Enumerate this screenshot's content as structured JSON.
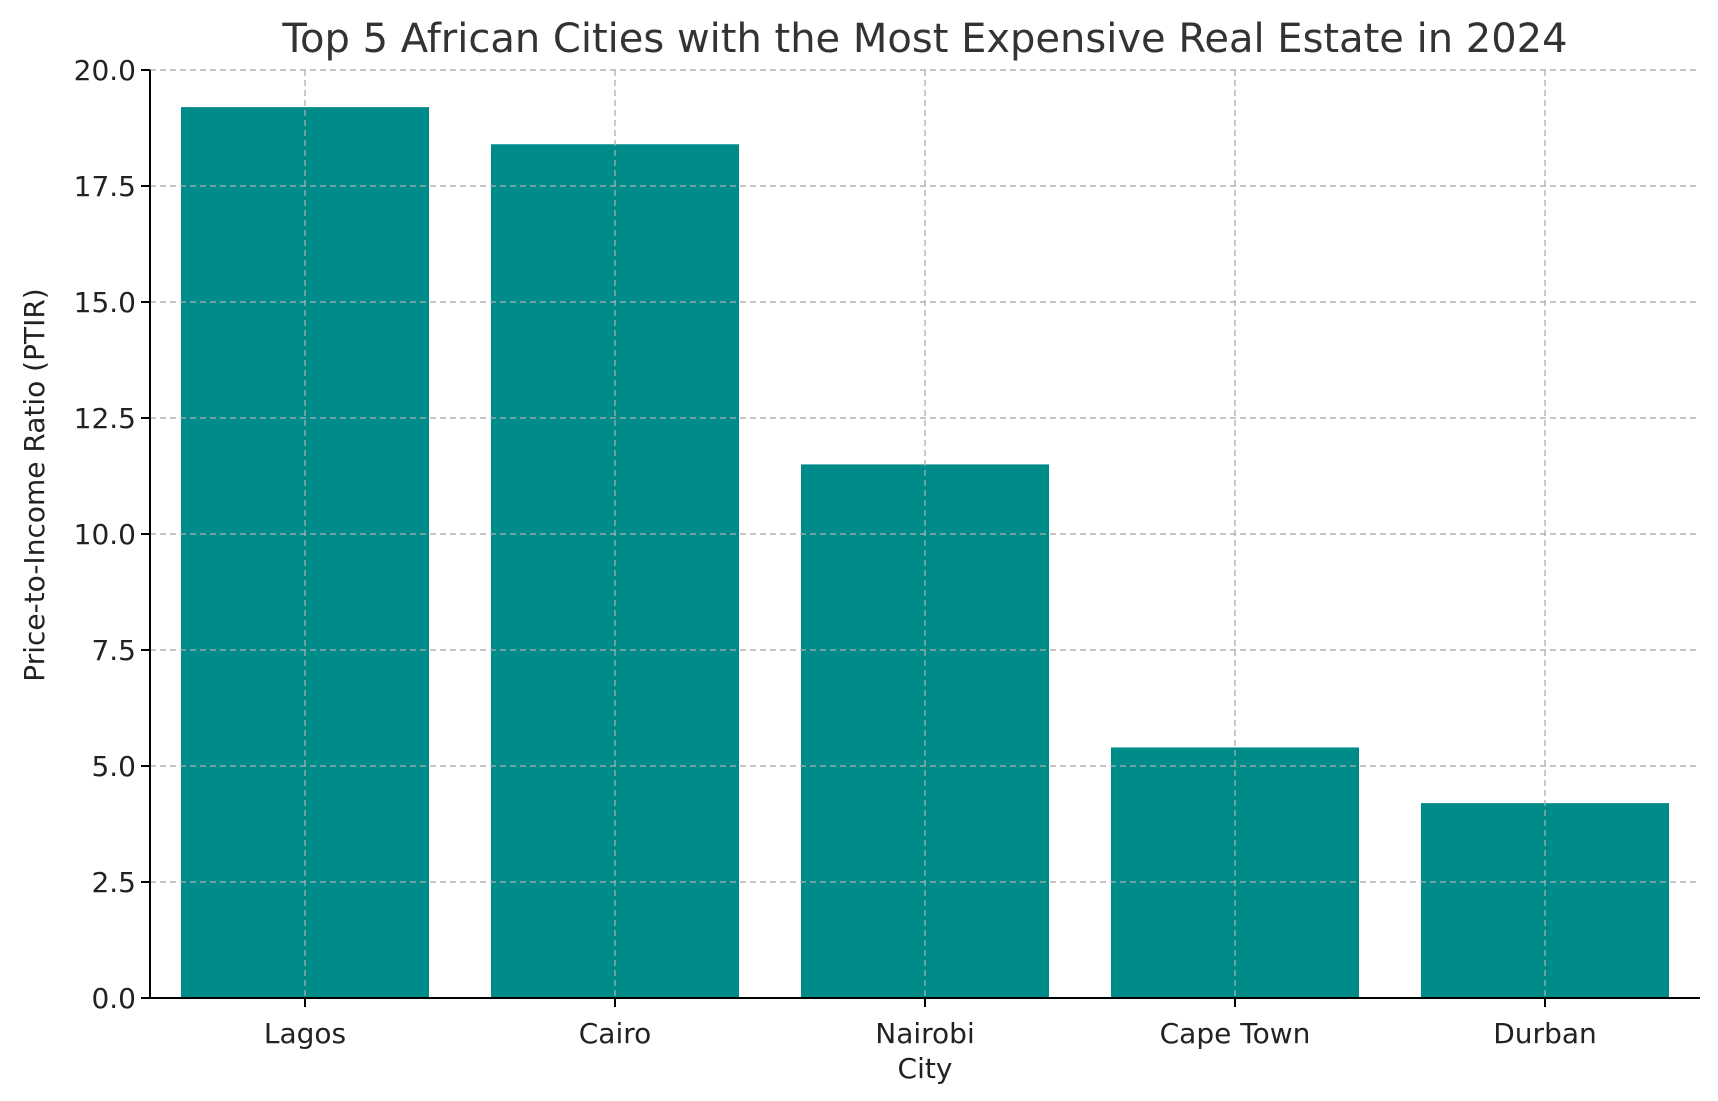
{
  "chart_data": {
    "type": "bar",
    "title": "Top 5 African Cities with the Most Expensive Real Estate in 2024",
    "xlabel": "City",
    "ylabel": "Price-to-Income Ratio (PTIR)",
    "categories": [
      "Lagos",
      "Cairo",
      "Nairobi",
      "Cape Town",
      "Durban"
    ],
    "values": [
      19.2,
      18.4,
      11.5,
      5.4,
      4.2
    ],
    "ylim": [
      0,
      20
    ],
    "yticks": [
      "0.0",
      "2.5",
      "5.0",
      "7.5",
      "10.0",
      "12.5",
      "15.0",
      "17.5",
      "20.0"
    ],
    "bar_color": "#008b8b",
    "grid": true
  }
}
